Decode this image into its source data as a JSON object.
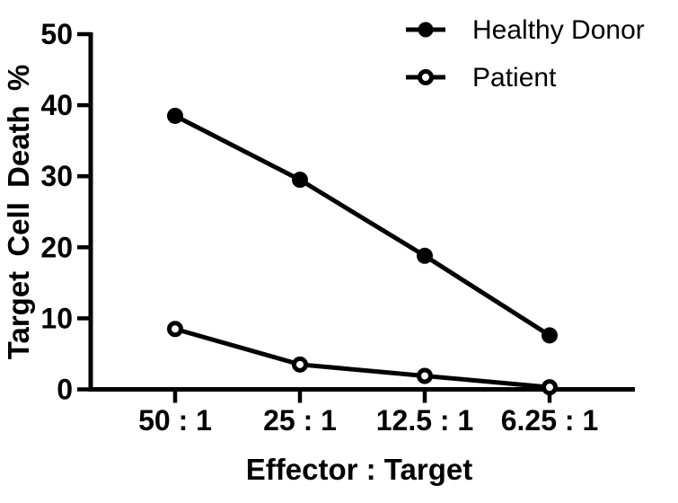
{
  "chart_data": {
    "type": "line",
    "title": "",
    "xlabel": "Effector : Target",
    "ylabel": "Target Cell Death %",
    "categories": [
      "50 : 1",
      "25 : 1",
      "12.5 : 1",
      "6.25 : 1"
    ],
    "series": [
      {
        "name": "Healthy Donor",
        "marker": "filled-circle",
        "values": [
          38.5,
          29.5,
          18.8,
          7.6
        ]
      },
      {
        "name": "Patient",
        "marker": "open-circle",
        "values": [
          8.5,
          3.5,
          1.9,
          0.3
        ]
      }
    ],
    "ylim": [
      0,
      50
    ],
    "yticks": [
      0,
      10,
      20,
      30,
      40,
      50
    ],
    "grid": false,
    "legend_position": "top-right",
    "colors": {
      "foreground": "#000000",
      "background": "#ffffff"
    }
  }
}
